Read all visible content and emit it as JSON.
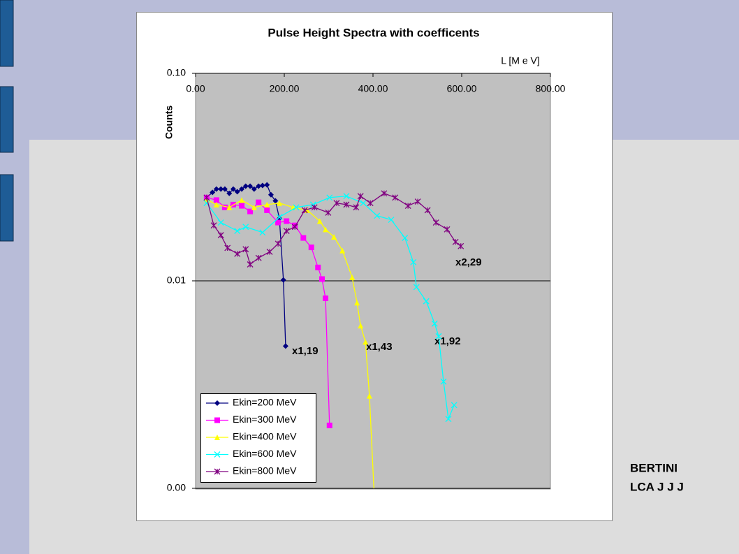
{
  "chart_data": {
    "type": "line",
    "title": "Pulse Height Spectra with coefficents",
    "x_label": "L [M e V]",
    "y_label": "Counts",
    "log_y": true,
    "grid": true,
    "legend": "lower left",
    "xlim": [
      0,
      800
    ],
    "xticks": [
      {
        "value": 0,
        "label": "0.00"
      },
      {
        "value": 200,
        "label": "200.00"
      },
      {
        "value": 400,
        "label": "400.00"
      },
      {
        "value": 600,
        "label": "600.00"
      },
      {
        "value": 800,
        "label": "800.00"
      }
    ],
    "ylim": [
      0.001,
      0.1
    ],
    "yticks": [
      {
        "value": 0.1,
        "label": "0.10"
      },
      {
        "value": 0.01,
        "label": "0.01"
      },
      {
        "value": 0.001,
        "label": "0.00"
      }
    ],
    "annotations": [
      {
        "text": "x1,19"
      },
      {
        "text": "x1,43"
      },
      {
        "text": "x1,92"
      },
      {
        "text": "x2,29"
      }
    ],
    "series": [
      {
        "name": "Ekin=200 MeV",
        "color": "#000080",
        "marker": "diamond",
        "x": [
          25,
          38,
          47,
          57,
          66,
          76,
          85,
          94,
          104,
          113,
          123,
          132,
          142,
          151,
          161,
          170,
          180,
          189,
          198,
          203
        ],
        "values": [
          0.0252,
          0.0267,
          0.0277,
          0.0277,
          0.0277,
          0.0264,
          0.0277,
          0.0269,
          0.0277,
          0.0286,
          0.0286,
          0.0277,
          0.0286,
          0.0288,
          0.029,
          0.026,
          0.0243,
          0.02,
          0.0101,
          0.00485
        ]
      },
      {
        "name": "Ekin=300 MeV",
        "color": "#ff00ff",
        "marker": "square",
        "x": [
          25,
          47,
          66,
          85,
          104,
          123,
          142,
          161,
          186,
          205,
          224,
          243,
          261,
          276,
          285,
          293,
          302
        ],
        "values": [
          0.0252,
          0.0245,
          0.0226,
          0.0233,
          0.023,
          0.0216,
          0.0239,
          0.0219,
          0.0191,
          0.0194,
          0.0185,
          0.0161,
          0.0145,
          0.0116,
          0.0102,
          0.00824,
          0.00201
        ]
      },
      {
        "name": "Ekin=400 MeV",
        "color": "#ffff00",
        "marker": "triangle",
        "x": [
          25,
          47,
          76,
          104,
          132,
          161,
          189,
          220,
          252,
          280,
          293,
          312,
          331,
          353,
          364,
          372,
          383,
          392,
          402
        ],
        "values": [
          0.0247,
          0.0233,
          0.0226,
          0.0245,
          0.0226,
          0.0233,
          0.0237,
          0.0226,
          0.0219,
          0.0194,
          0.0177,
          0.0163,
          0.014,
          0.0104,
          0.00785,
          0.00608,
          0.00508,
          0.00279,
          0.001
        ]
      },
      {
        "name": "Ekin=600 MeV",
        "color": "#00ffff",
        "marker": "x",
        "x": [
          25,
          57,
          94,
          113,
          151,
          189,
          227,
          265,
          302,
          340,
          378,
          409,
          441,
          472,
          491,
          498,
          520,
          539,
          548,
          559,
          570,
          583
        ],
        "values": [
          0.0237,
          0.0191,
          0.0174,
          0.0182,
          0.0171,
          0.0203,
          0.0226,
          0.0233,
          0.0252,
          0.0256,
          0.0237,
          0.0206,
          0.0197,
          0.0161,
          0.0123,
          0.00933,
          0.00798,
          0.00622,
          0.00541,
          0.00327,
          0.00216,
          0.00252
        ]
      },
      {
        "name": "Ekin=800 MeV",
        "color": "#800080",
        "marker": "star",
        "x": [
          25,
          41,
          57,
          72,
          94,
          113,
          123,
          142,
          167,
          186,
          205,
          224,
          246,
          268,
          299,
          318,
          340,
          362,
          372,
          394,
          425,
          450,
          479,
          501,
          523,
          542,
          567,
          586,
          598
        ],
        "values": [
          0.0252,
          0.0185,
          0.0166,
          0.0144,
          0.0135,
          0.0142,
          0.012,
          0.0129,
          0.0138,
          0.0151,
          0.0174,
          0.0182,
          0.0219,
          0.0226,
          0.0213,
          0.0237,
          0.0233,
          0.0226,
          0.0256,
          0.0237,
          0.0264,
          0.0252,
          0.023,
          0.0241,
          0.0219,
          0.0191,
          0.0177,
          0.0154,
          0.0147
        ]
      }
    ]
  },
  "side_note": [
    "BERTINI",
    "LCA J J J"
  ]
}
